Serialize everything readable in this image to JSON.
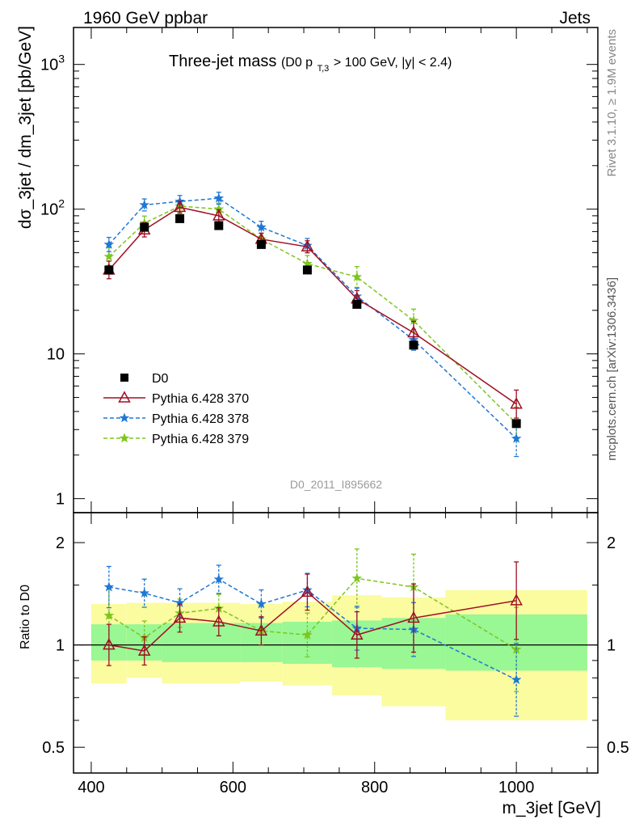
{
  "header": {
    "left": "1960 GeV ppbar",
    "right": "Jets"
  },
  "side": {
    "rivet": "Rivet 3.1.10, ≥ 1.9M events",
    "mcplots": "mcplots.cern.ch [arXiv:1306.3436]"
  },
  "chart_data": {
    "type": "scatter",
    "title_main": "Three-jet mass",
    "title_cuts_a": "(D0 p",
    "title_cuts_sub": "T,3",
    "title_cuts_b": " > 100 GeV, |y| < 2.4)",
    "analysis_id": "D0_2011_I895662",
    "ylabel": "dσ_3jet / dm_3jet [pb/GeV]",
    "ratio_ylabel": "Ratio to D0",
    "xlabel": "m_3jet [GeV]",
    "xlim": [
      375,
      1115
    ],
    "ylim": [
      0.8,
      1800
    ],
    "ratio_ylim": [
      0.42,
      2.45
    ],
    "x_ticks": [
      {
        "value": 400,
        "label": "400"
      },
      {
        "value": 600,
        "label": "600"
      },
      {
        "value": 800,
        "label": "800"
      },
      {
        "value": 1000,
        "label": "1000"
      }
    ],
    "y_ticks": [
      {
        "value": 1,
        "label": "1"
      },
      {
        "value": 10,
        "label": "10"
      },
      {
        "value": 100,
        "label": "10",
        "exp": "2"
      },
      {
        "value": 1000,
        "label": "10",
        "exp": "3"
      }
    ],
    "ratio_ticks": [
      {
        "value": 0.5,
        "label": "0.5"
      },
      {
        "value": 1,
        "label": "1"
      },
      {
        "value": 2,
        "label": "2"
      }
    ],
    "bins": [
      {
        "x": 425,
        "lo": 400,
        "hi": 450
      },
      {
        "x": 475,
        "lo": 450,
        "hi": 500
      },
      {
        "x": 525,
        "lo": 500,
        "hi": 550
      },
      {
        "x": 580,
        "lo": 550,
        "hi": 610
      },
      {
        "x": 640,
        "lo": 610,
        "hi": 670
      },
      {
        "x": 705,
        "lo": 670,
        "hi": 740
      },
      {
        "x": 775,
        "lo": 740,
        "hi": 810
      },
      {
        "x": 855,
        "lo": 810,
        "hi": 900
      },
      {
        "x": 1000,
        "lo": 900,
        "hi": 1100
      }
    ],
    "data": {
      "name": "D0",
      "values": [
        38,
        75,
        86,
        77,
        57,
        38,
        22,
        11.5,
        3.3
      ]
    },
    "band_yellow": [
      [
        0.77,
        1.32
      ],
      [
        0.8,
        1.33
      ],
      [
        0.77,
        1.33
      ],
      [
        0.77,
        1.33
      ],
      [
        0.78,
        1.32
      ],
      [
        0.76,
        1.34
      ],
      [
        0.71,
        1.4
      ],
      [
        0.66,
        1.38
      ],
      [
        0.6,
        1.45
      ]
    ],
    "band_green": [
      [
        0.9,
        1.15
      ],
      [
        0.9,
        1.15
      ],
      [
        0.89,
        1.16
      ],
      [
        0.89,
        1.16
      ],
      [
        0.89,
        1.16
      ],
      [
        0.88,
        1.17
      ],
      [
        0.86,
        1.18
      ],
      [
        0.85,
        1.2
      ],
      [
        0.84,
        1.23
      ]
    ],
    "series": [
      {
        "name": "Pythia 6.428 370",
        "color": "#a00f24",
        "marker": "triangle",
        "dash": "",
        "values": [
          38,
          72,
          103,
          90,
          62,
          55,
          24,
          14,
          4.5
        ],
        "err": [
          0.15,
          0.12,
          0.1,
          0.1,
          0.1,
          0.1,
          0.14,
          0.2,
          0.25
        ],
        "ratio": [
          1.0,
          0.96,
          1.2,
          1.17,
          1.1,
          1.43,
          1.07,
          1.2,
          1.35
        ],
        "ratio_err": [
          0.15,
          0.1,
          0.1,
          0.1,
          0.1,
          0.13,
          0.17,
          0.26,
          0.3
        ]
      },
      {
        "name": "Pythia 6.428 378",
        "color": "#1f78d4",
        "marker": "star",
        "dash": "5,3",
        "values": [
          57,
          107,
          113,
          119,
          75,
          56,
          25,
          12.5,
          2.6
        ],
        "err": [
          0.12,
          0.1,
          0.1,
          0.1,
          0.1,
          0.12,
          0.14,
          0.18,
          0.33
        ],
        "ratio": [
          1.48,
          1.42,
          1.33,
          1.56,
          1.32,
          1.45,
          1.12,
          1.11,
          0.79
        ],
        "ratio_err": [
          0.15,
          0.1,
          0.1,
          0.1,
          0.1,
          0.12,
          0.16,
          0.2,
          0.28
        ]
      },
      {
        "name": "Pythia 6.428 379",
        "color": "#7cc61e",
        "marker": "star",
        "dash": "5,3",
        "values": [
          47,
          80,
          105,
          100,
          62,
          42,
          34,
          17,
          3.3
        ],
        "err": [
          0.15,
          0.12,
          0.1,
          0.1,
          0.1,
          0.14,
          0.18,
          0.2,
          0.3
        ],
        "ratio": [
          1.22,
          1.05,
          1.24,
          1.28,
          1.1,
          1.07,
          1.57,
          1.48,
          0.97
        ],
        "ratio_err": [
          0.2,
          0.12,
          0.1,
          0.1,
          0.1,
          0.16,
          0.22,
          0.25,
          0.33
        ]
      }
    ]
  }
}
